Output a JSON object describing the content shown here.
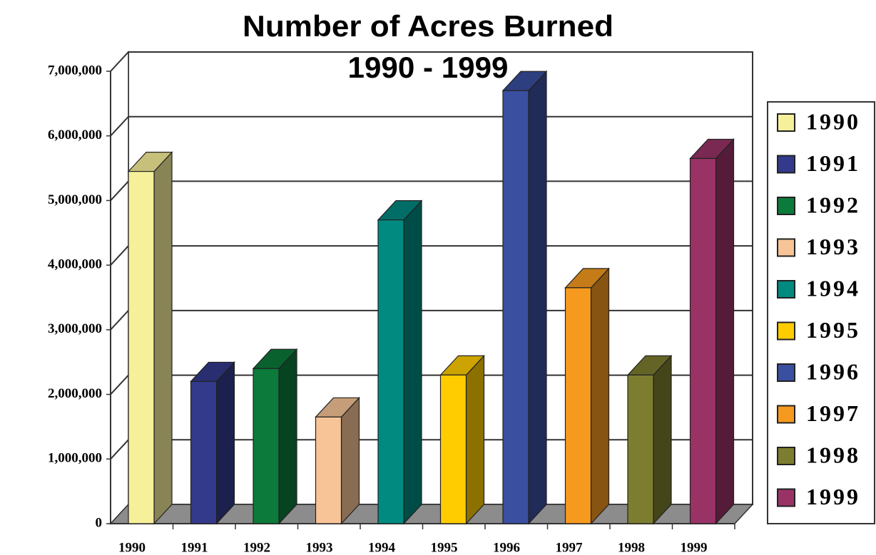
{
  "chart_data": {
    "type": "bar3d",
    "title": "Number of Acres Burned",
    "subtitle": "1990 - 1999",
    "categories": [
      "1990",
      "1991",
      "1992",
      "1993",
      "1994",
      "1995",
      "1996",
      "1997",
      "1998",
      "1999"
    ],
    "values": [
      5450000,
      2200000,
      2400000,
      1650000,
      4700000,
      2300000,
      6700000,
      3650000,
      2300000,
      5650000
    ],
    "colors": [
      "#f7f09a",
      "#333a8c",
      "#0b7a3a",
      "#f7c497",
      "#008a80",
      "#ffcc00",
      "#3a4fa0",
      "#f59a1e",
      "#7d7d30",
      "#993366"
    ],
    "ylim": [
      0,
      7000000
    ],
    "yticks": [
      0,
      {
        "value": 1000000,
        "label": "1,000,000"
      },
      {
        "value": 2000000,
        "label": "2,000,000"
      },
      {
        "value": 3000000,
        "label": "3,000,000"
      },
      {
        "value": 4000000,
        "label": "4,000,000"
      },
      {
        "value": 5000000,
        "label": "5,000,000"
      },
      {
        "value": 6000000,
        "label": "6,000,000"
      },
      {
        "value": 7000000,
        "label": "7,000,000"
      }
    ],
    "grid": true,
    "legend": "right"
  }
}
